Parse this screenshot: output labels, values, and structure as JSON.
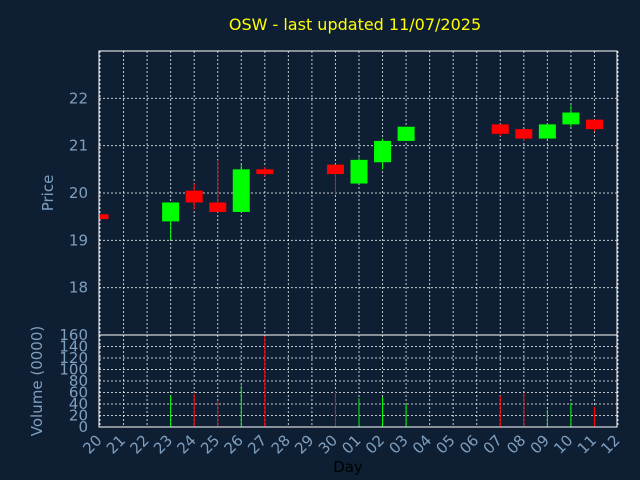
{
  "chart_data": {
    "type": "candlestick",
    "title": "OSW - last updated 11/07/2025",
    "colors": {
      "background": "#0f1f33",
      "up": "#00ff00",
      "down": "#ff0000",
      "title": "#ffff00",
      "axis_text": "#7f9fbf",
      "grid": "#ffffff"
    },
    "x": {
      "label": "Day",
      "tick_labels": [
        "20",
        "21",
        "22",
        "23",
        "24",
        "25",
        "26",
        "27",
        "28",
        "29",
        "30",
        "01",
        "02",
        "03",
        "04",
        "05",
        "06",
        "07",
        "08",
        "09",
        "10",
        "11",
        "12"
      ]
    },
    "price": {
      "ylabel": "Price",
      "ylim": [
        17,
        23
      ],
      "ticks": [
        18,
        19,
        20,
        21,
        22
      ],
      "candles": [
        {
          "slot": 0,
          "open": 19.55,
          "close": 19.45,
          "high": 19.55,
          "low": 19.45
        },
        {
          "slot": 3,
          "open": 19.4,
          "close": 19.8,
          "high": 19.8,
          "low": 19.0
        },
        {
          "slot": 4,
          "open": 20.05,
          "close": 19.8,
          "high": 20.2,
          "low": 19.65
        },
        {
          "slot": 5,
          "open": 19.8,
          "close": 19.6,
          "high": 20.7,
          "low": 19.6
        },
        {
          "slot": 6,
          "open": 19.6,
          "close": 20.5,
          "high": 20.6,
          "low": 19.6
        },
        {
          "slot": 7,
          "open": 20.5,
          "close": 20.4,
          "high": 20.55,
          "low": 20.35
        },
        {
          "slot": 10,
          "open": 20.6,
          "close": 20.4,
          "high": 20.6,
          "low": 20.0
        },
        {
          "slot": 11,
          "open": 20.2,
          "close": 20.7,
          "high": 20.75,
          "low": 20.2
        },
        {
          "slot": 12,
          "open": 20.65,
          "close": 21.1,
          "high": 21.15,
          "low": 20.5
        },
        {
          "slot": 13,
          "open": 21.1,
          "close": 21.4,
          "high": 21.4,
          "low": 21.1
        },
        {
          "slot": 17,
          "open": 21.45,
          "close": 21.25,
          "high": 21.45,
          "low": 21.2
        },
        {
          "slot": 18,
          "open": 21.35,
          "close": 21.15,
          "high": 21.35,
          "low": 21.1
        },
        {
          "slot": 19,
          "open": 21.15,
          "close": 21.45,
          "high": 21.45,
          "low": 21.15
        },
        {
          "slot": 20,
          "open": 21.45,
          "close": 21.7,
          "high": 21.85,
          "low": 21.4
        },
        {
          "slot": 21,
          "open": 21.55,
          "close": 21.35,
          "high": 21.55,
          "low": 21.3
        }
      ]
    },
    "volume": {
      "ylabel": "Volume (0000)",
      "ylim": [
        0,
        160
      ],
      "ticks": [
        0,
        20,
        40,
        60,
        80,
        100,
        120,
        140,
        160
      ],
      "bars": [
        {
          "slot": 0,
          "value": 0,
          "dir": "down"
        },
        {
          "slot": 3,
          "value": 55,
          "dir": "up"
        },
        {
          "slot": 4,
          "value": 58,
          "dir": "down"
        },
        {
          "slot": 5,
          "value": 46,
          "dir": "down"
        },
        {
          "slot": 6,
          "value": 72,
          "dir": "up"
        },
        {
          "slot": 7,
          "value": 158,
          "dir": "down"
        },
        {
          "slot": 10,
          "value": 62,
          "dir": "down"
        },
        {
          "slot": 11,
          "value": 50,
          "dir": "up"
        },
        {
          "slot": 12,
          "value": 52,
          "dir": "up"
        },
        {
          "slot": 13,
          "value": 40,
          "dir": "up"
        },
        {
          "slot": 17,
          "value": 55,
          "dir": "down"
        },
        {
          "slot": 18,
          "value": 60,
          "dir": "down"
        },
        {
          "slot": 19,
          "value": 30,
          "dir": "up"
        },
        {
          "slot": 20,
          "value": 42,
          "dir": "up"
        },
        {
          "slot": 21,
          "value": 35,
          "dir": "down"
        }
      ]
    }
  }
}
